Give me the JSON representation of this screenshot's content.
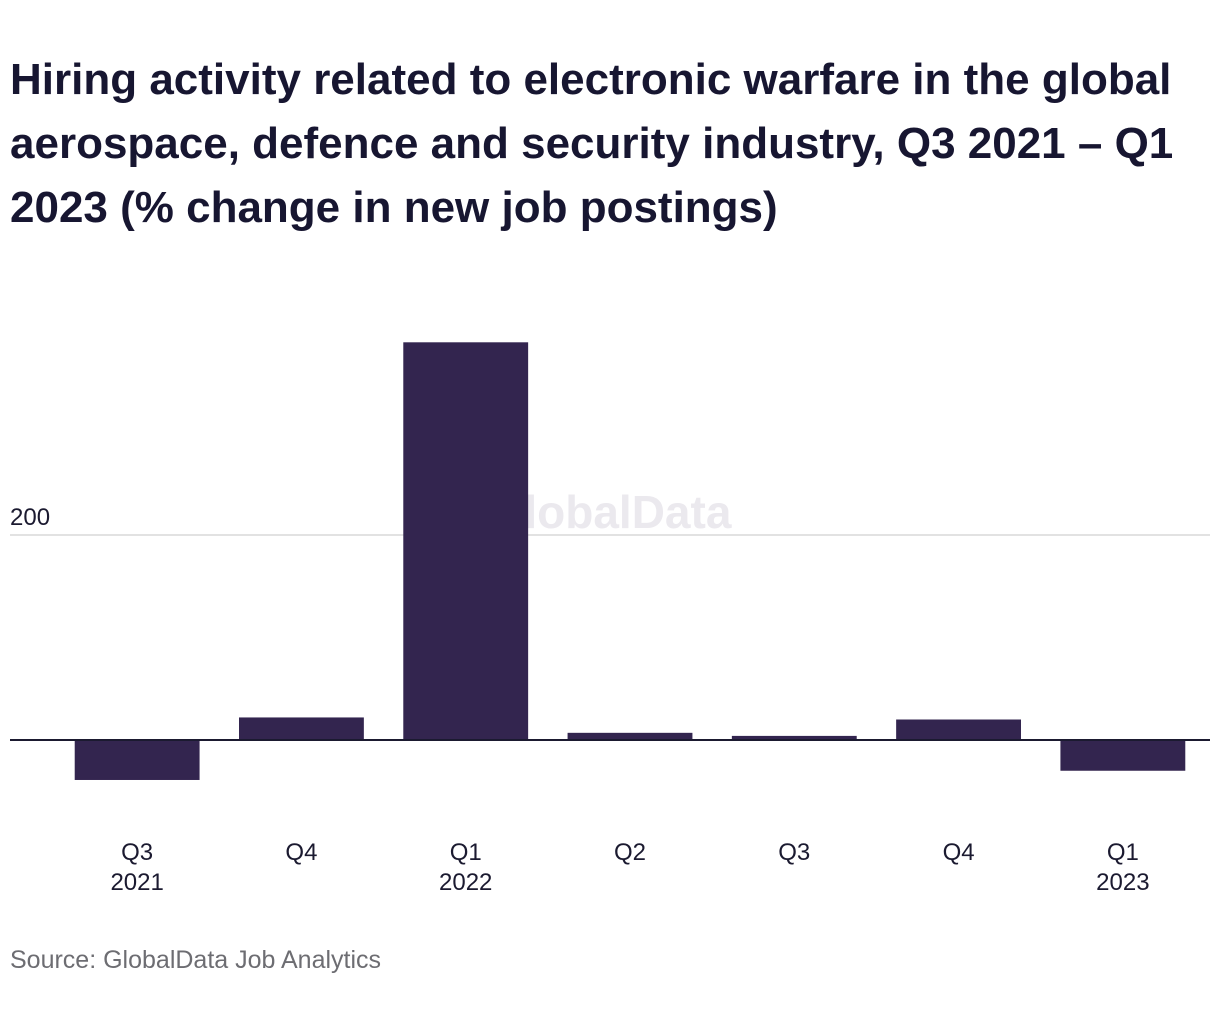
{
  "chart_data": {
    "type": "bar",
    "title": "Hiring activity related to electronic warfare in the global aerospace, defence and security industry, Q3 2021 – Q1 2023 (% change in new job postings)",
    "categories": [
      {
        "quarter": "Q3",
        "year": "2021"
      },
      {
        "quarter": "Q4",
        "year": ""
      },
      {
        "quarter": "Q1",
        "year": "2022"
      },
      {
        "quarter": "Q2",
        "year": ""
      },
      {
        "quarter": "Q3",
        "year": ""
      },
      {
        "quarter": "Q4",
        "year": ""
      },
      {
        "quarter": "Q1",
        "year": "2023"
      }
    ],
    "values": [
      -39,
      22,
      388,
      7,
      4,
      20,
      -30
    ],
    "y_ticks": [
      200
    ],
    "y_tick_labels": [
      "200"
    ],
    "ylim": [
      -70,
      420
    ],
    "xlabel": "",
    "ylabel": "",
    "grid": true,
    "legend": "none",
    "bar_color": "#33254f",
    "watermark": "GlobalData"
  },
  "source": "Source: GlobalData Job Analytics"
}
